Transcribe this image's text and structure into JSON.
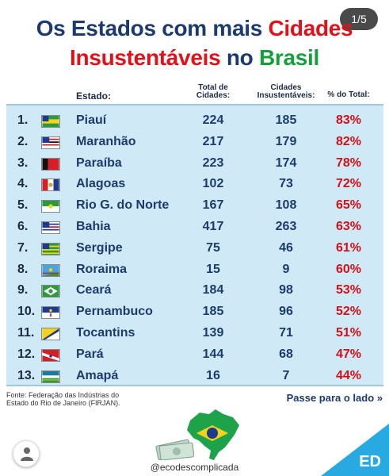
{
  "pager": {
    "label": "1/5"
  },
  "title": {
    "line1_a": "Os Estados com mais ",
    "line1_b": "Cidades",
    "line2_a": "Insustentáveis",
    "line2_b": " no ",
    "line2_c": "Brasil"
  },
  "header": {
    "estado": "Estado:",
    "total_1": "Total de",
    "total_2": "Cidades:",
    "insust_1": "Cidades",
    "insust_2": "Insustentáveis:",
    "pct": "% do Total:"
  },
  "rows": [
    {
      "rank": "1.",
      "state": "Piauí",
      "total": "224",
      "insust": "185",
      "pct": "83%",
      "flag": "piaui"
    },
    {
      "rank": "2.",
      "state": "Maranhão",
      "total": "217",
      "insust": "179",
      "pct": "82%",
      "flag": "maranhao"
    },
    {
      "rank": "3.",
      "state": "Paraíba",
      "total": "223",
      "insust": "174",
      "pct": "78%",
      "flag": "paraiba"
    },
    {
      "rank": "4.",
      "state": "Alagoas",
      "total": "102",
      "insust": "73",
      "pct": "72%",
      "flag": "alagoas"
    },
    {
      "rank": "5.",
      "state": "Rio G. do Norte",
      "total": "167",
      "insust": "108",
      "pct": "65%",
      "flag": "rn"
    },
    {
      "rank": "6.",
      "state": "Bahia",
      "total": "417",
      "insust": "263",
      "pct": "63%",
      "flag": "bahia"
    },
    {
      "rank": "7.",
      "state": "Sergipe",
      "total": "75",
      "insust": "46",
      "pct": "61%",
      "flag": "sergipe"
    },
    {
      "rank": "8.",
      "state": "Roraima",
      "total": "15",
      "insust": "9",
      "pct": "60%",
      "flag": "roraima"
    },
    {
      "rank": "9.",
      "state": "Ceará",
      "total": "184",
      "insust": "98",
      "pct": "53%",
      "flag": "ceara"
    },
    {
      "rank": "10.",
      "state": "Pernambuco",
      "total": "185",
      "insust": "96",
      "pct": "52%",
      "flag": "pernambuco"
    },
    {
      "rank": "11.",
      "state": "Tocantins",
      "total": "139",
      "insust": "71",
      "pct": "51%",
      "flag": "tocantins"
    },
    {
      "rank": "12.",
      "state": "Pará",
      "total": "144",
      "insust": "68",
      "pct": "47%",
      "flag": "para"
    },
    {
      "rank": "13.",
      "state": "Amapá",
      "total": "16",
      "insust": "7",
      "pct": "44%",
      "flag": "amapa"
    }
  ],
  "footer": {
    "source_1": "Fonte: Federação das Indústrias do",
    "source_2": "Estado do Rio de Janeiro (FIRJAN).",
    "swipe": "Passe para o lado »",
    "handle": "@ecodescomplicada",
    "corner_label": "ED"
  },
  "colors": {
    "navy": "#1d3a6e",
    "red": "#e3101a",
    "green": "#13a03a",
    "table_bg": "#cfeaf6"
  }
}
